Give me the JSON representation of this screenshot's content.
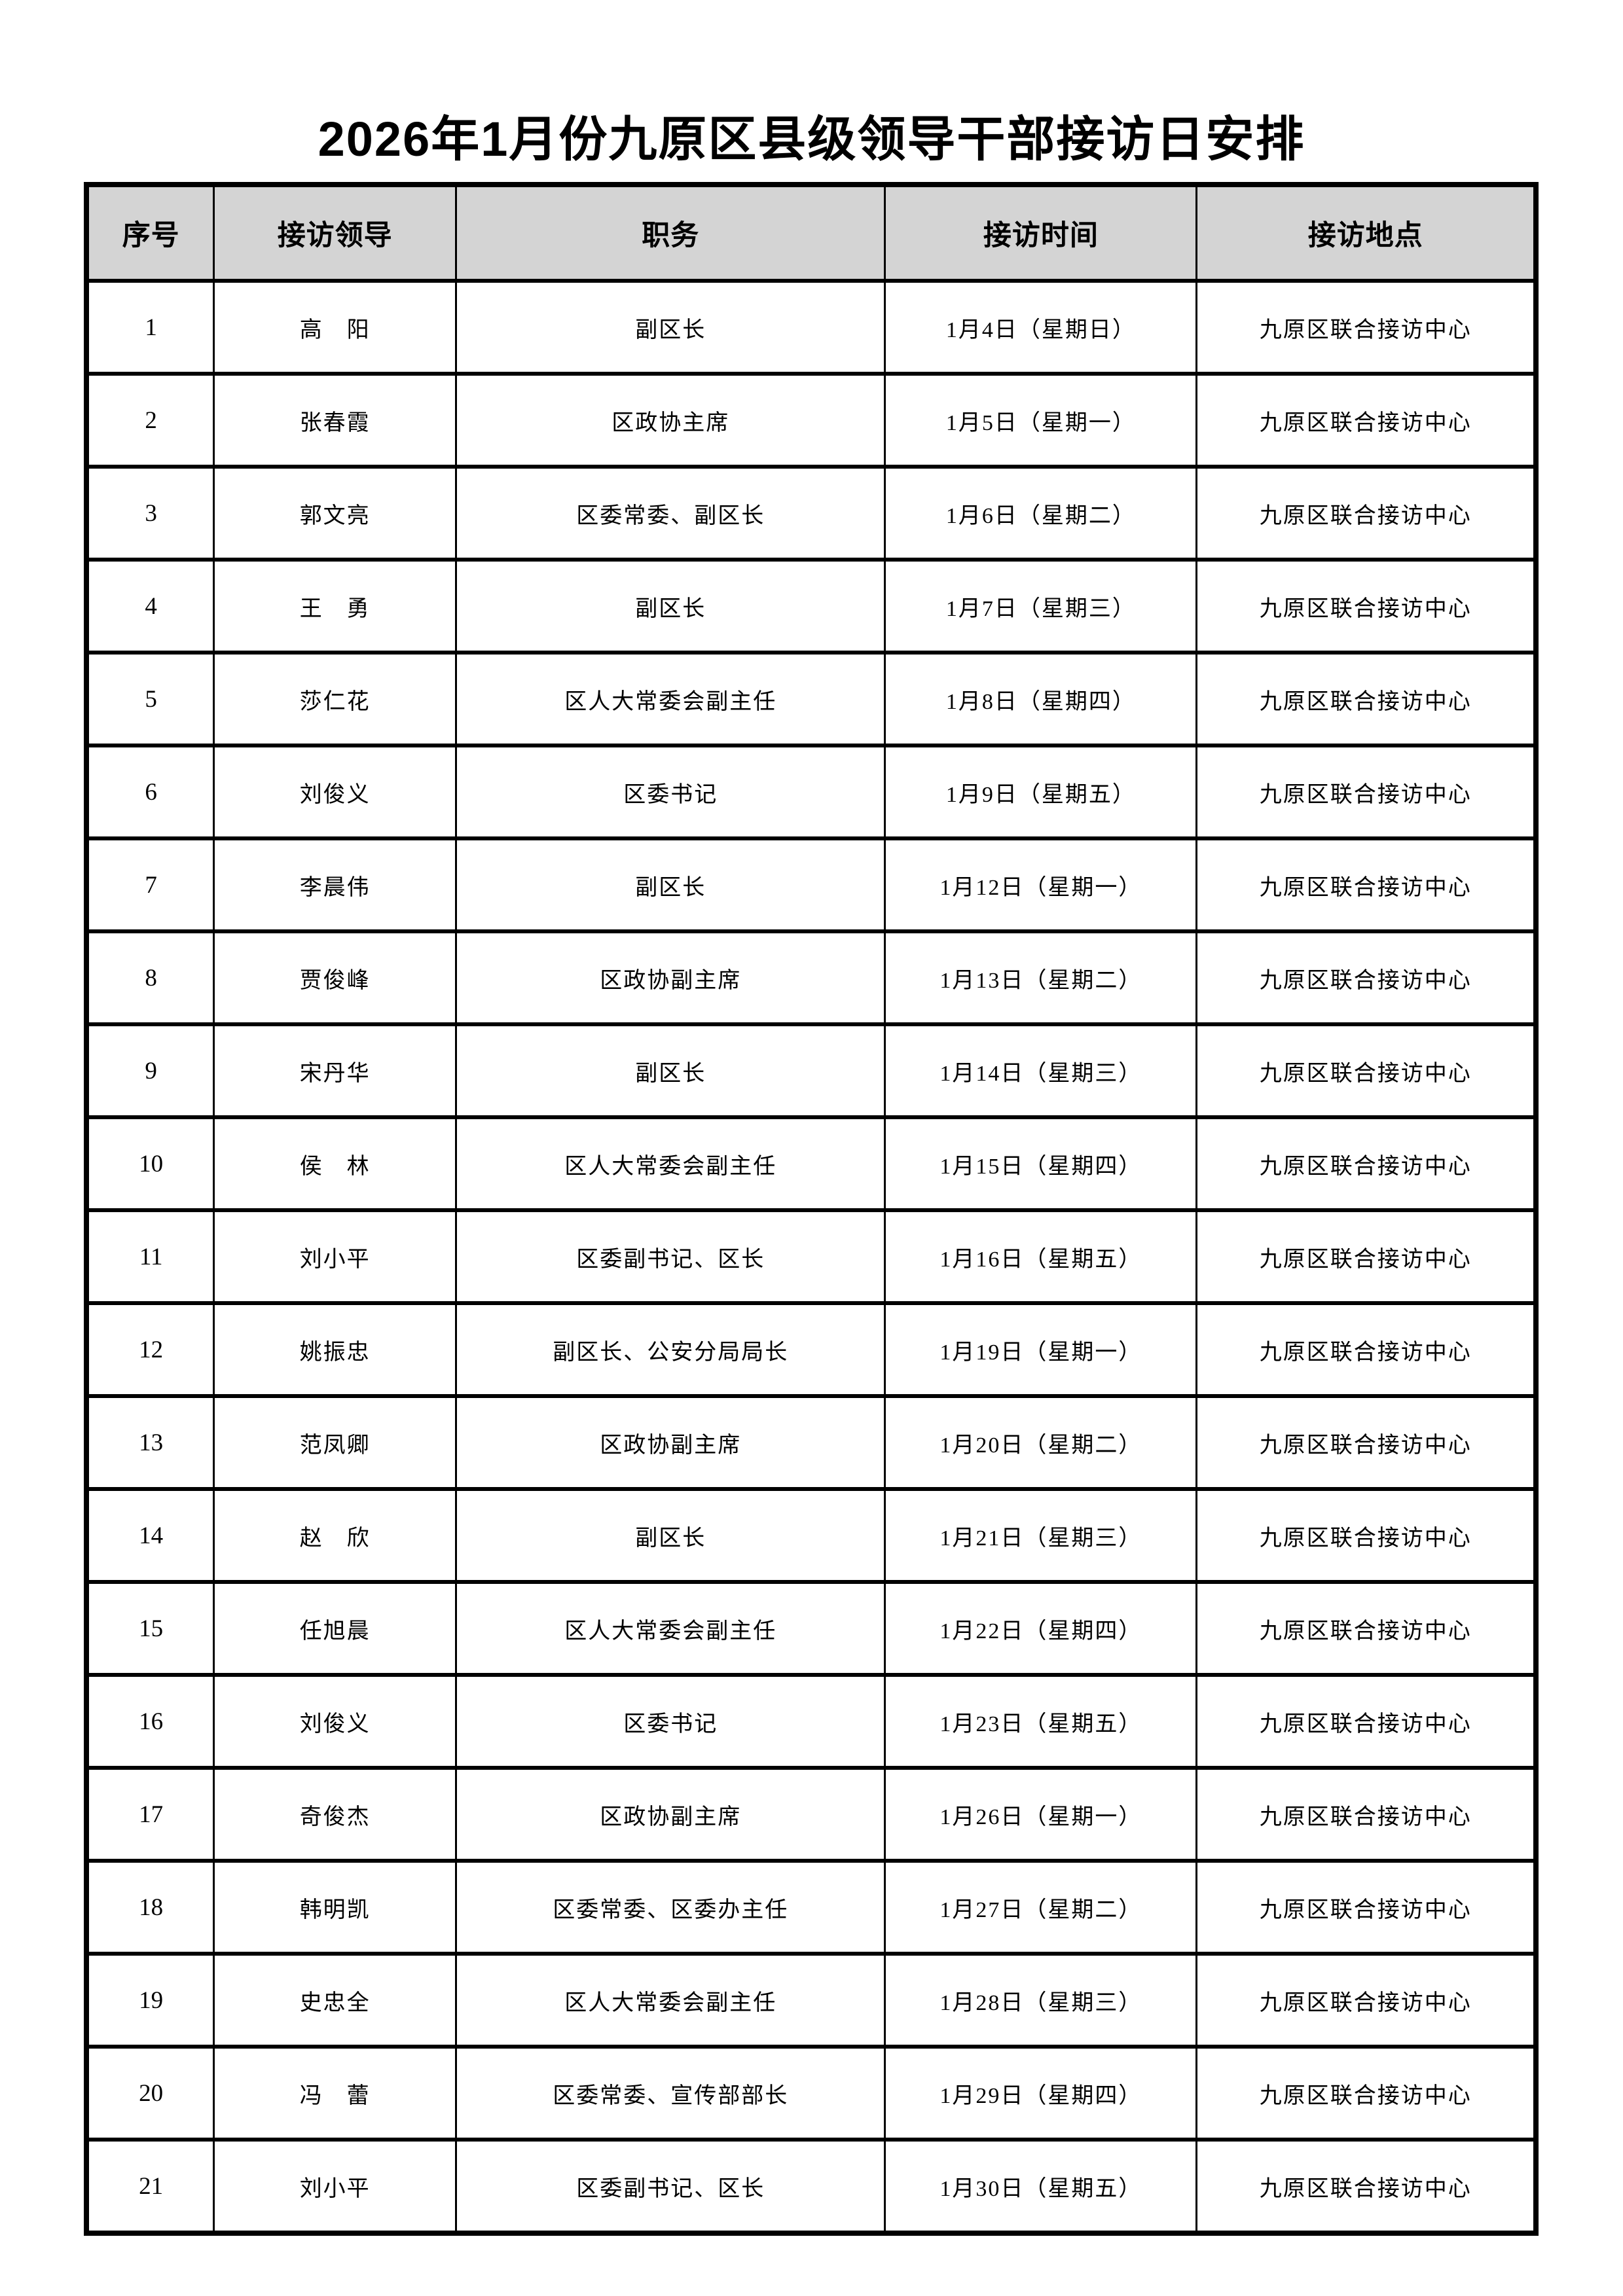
{
  "page": {
    "title": "2026年1月份九原区县级领导干部接访日安排"
  },
  "colors": {
    "page_bg": "#ffffff",
    "header_bg": "#d4d4d4",
    "border": "#000000",
    "text": "#000000"
  },
  "table": {
    "headers": [
      "序号",
      "接访领导",
      "职务",
      "接访时间",
      "接访地点"
    ],
    "rows": [
      [
        "1",
        "高　阳",
        "副区长",
        "1月4日（星期日）",
        "九原区联合接访中心"
      ],
      [
        "2",
        "张春霞",
        "区政协主席",
        "1月5日（星期一）",
        "九原区联合接访中心"
      ],
      [
        "3",
        "郭文亮",
        "区委常委、副区长",
        "1月6日（星期二）",
        "九原区联合接访中心"
      ],
      [
        "4",
        "王　勇",
        "副区长",
        "1月7日（星期三）",
        "九原区联合接访中心"
      ],
      [
        "5",
        "莎仁花",
        "区人大常委会副主任",
        "1月8日（星期四）",
        "九原区联合接访中心"
      ],
      [
        "6",
        "刘俊义",
        "区委书记",
        "1月9日（星期五）",
        "九原区联合接访中心"
      ],
      [
        "7",
        "李晨伟",
        "副区长",
        "1月12日（星期一）",
        "九原区联合接访中心"
      ],
      [
        "8",
        "贾俊峰",
        "区政协副主席",
        "1月13日（星期二）",
        "九原区联合接访中心"
      ],
      [
        "9",
        "宋丹华",
        "副区长",
        "1月14日（星期三）",
        "九原区联合接访中心"
      ],
      [
        "10",
        "侯　林",
        "区人大常委会副主任",
        "1月15日（星期四）",
        "九原区联合接访中心"
      ],
      [
        "11",
        "刘小平",
        "区委副书记、区长",
        "1月16日（星期五）",
        "九原区联合接访中心"
      ],
      [
        "12",
        "姚振忠",
        "副区长、公安分局局长",
        "1月19日（星期一）",
        "九原区联合接访中心"
      ],
      [
        "13",
        "范凤卿",
        "区政协副主席",
        "1月20日（星期二）",
        "九原区联合接访中心"
      ],
      [
        "14",
        "赵　欣",
        "副区长",
        "1月21日（星期三）",
        "九原区联合接访中心"
      ],
      [
        "15",
        "任旭晨",
        "区人大常委会副主任",
        "1月22日（星期四）",
        "九原区联合接访中心"
      ],
      [
        "16",
        "刘俊义",
        "区委书记",
        "1月23日（星期五）",
        "九原区联合接访中心"
      ],
      [
        "17",
        "奇俊杰",
        "区政协副主席",
        "1月26日（星期一）",
        "九原区联合接访中心"
      ],
      [
        "18",
        "韩明凯",
        "区委常委、区委办主任",
        "1月27日（星期二）",
        "九原区联合接访中心"
      ],
      [
        "19",
        "史忠全",
        "区人大常委会副主任",
        "1月28日（星期三）",
        "九原区联合接访中心"
      ],
      [
        "20",
        "冯　蕾",
        "区委常委、宣传部部长",
        "1月29日（星期四）",
        "九原区联合接访中心"
      ],
      [
        "21",
        "刘小平",
        "区委副书记、区长",
        "1月30日（星期五）",
        "九原区联合接访中心"
      ]
    ]
  }
}
